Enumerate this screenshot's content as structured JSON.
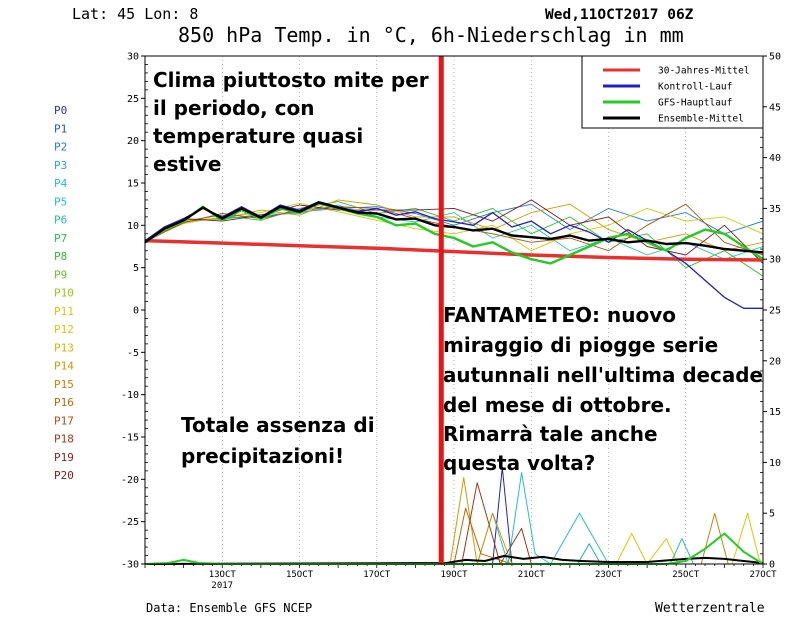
{
  "header": {
    "location": "Lat: 45 Lon: 8",
    "date": "Wed,11OCT2017 06Z",
    "title": "850 hPa Temp. in °C, 6h-Niederschlag in mm"
  },
  "footer": {
    "source": "Data: Ensemble GFS NCEP",
    "brand": "Wetterzentrale"
  },
  "annotations": {
    "clima": [
      "Clima piuttosto mite per",
      "il periodo, con",
      "temperature quasi",
      "estive"
    ],
    "precip": [
      "Totale assenza di",
      "precipitazioni!"
    ],
    "fantameteo": [
      "FANTAMETEO: nuovo",
      "miraggio di piogge serie",
      "autunnali nell'ultima decade",
      "del mese di ottobre.",
      "Rimarrà tale anche",
      "questa volta?"
    ]
  },
  "colors": {
    "climate": "#e8312f",
    "control": "#2020c8",
    "gfs": "#22cc22",
    "ensemble": "#000000",
    "marker": "#ee1111"
  },
  "chart_data": {
    "type": "line",
    "x_start_day": 11,
    "x_end_day": 27,
    "x_ticks": [
      {
        "day": 13,
        "label": "13OCT"
      },
      {
        "day": 15,
        "label": "15OCT"
      },
      {
        "day": 17,
        "label": "17OCT"
      },
      {
        "day": 19,
        "label": "19OCT"
      },
      {
        "day": 21,
        "label": "21OCT"
      },
      {
        "day": 23,
        "label": "23OCT"
      },
      {
        "day": 25,
        "label": "25OCT"
      },
      {
        "day": 27,
        "label": "27OCT"
      }
    ],
    "x_year_label": "2017",
    "y_left": {
      "min": -30,
      "max": 30,
      "ticks": [
        30,
        25,
        20,
        15,
        10,
        5,
        0,
        -5,
        -10,
        -15,
        -20,
        -25,
        -30
      ]
    },
    "y_right": {
      "min": 0,
      "max": 50,
      "ticks": [
        50,
        45,
        40,
        35,
        30,
        25,
        20,
        15,
        10,
        5,
        0
      ]
    },
    "marker_day": 18.67,
    "legend": [
      {
        "label": "30-Jahres-Mittel",
        "color": "#e8312f"
      },
      {
        "label": "Kontroll-Lauf",
        "color": "#2020c8"
      },
      {
        "label": "GFS-Hauptlauf",
        "color": "#22cc22"
      },
      {
        "label": "Ensemble-Mittel",
        "color": "#000000"
      }
    ],
    "members": [
      {
        "name": "P0",
        "color": "#3030b0"
      },
      {
        "name": "P1",
        "color": "#2255cc"
      },
      {
        "name": "P2",
        "color": "#1f80d0"
      },
      {
        "name": "P3",
        "color": "#22a8cc"
      },
      {
        "name": "P4",
        "color": "#22c0d0"
      },
      {
        "name": "P5",
        "color": "#22c8b0"
      },
      {
        "name": "P6",
        "color": "#22c890"
      },
      {
        "name": "P7",
        "color": "#22c060"
      },
      {
        "name": "P8",
        "color": "#30c030"
      },
      {
        "name": "P9",
        "color": "#60c820"
      },
      {
        "name": "P10",
        "color": "#90d010"
      },
      {
        "name": "P11",
        "color": "#c8d000"
      },
      {
        "name": "P12",
        "color": "#e0c800"
      },
      {
        "name": "P13",
        "color": "#e0b000"
      },
      {
        "name": "P14",
        "color": "#d89800"
      },
      {
        "name": "P15",
        "color": "#d08000"
      },
      {
        "name": "P16",
        "color": "#c06800"
      },
      {
        "name": "P17",
        "color": "#b05010"
      },
      {
        "name": "P18",
        "color": "#a03818"
      },
      {
        "name": "P19",
        "color": "#902020"
      },
      {
        "name": "P20",
        "color": "#801818"
      }
    ],
    "series": [
      {
        "name": "30-Jahres-Mittel",
        "x": [
          11,
          13,
          15,
          17,
          19,
          21,
          23,
          25,
          27
        ],
        "y": [
          8.2,
          7.9,
          7.6,
          7.3,
          6.9,
          6.5,
          6.2,
          6.0,
          5.9
        ]
      },
      {
        "name": "Kontroll-Lauf",
        "x": [
          11,
          11.5,
          12,
          12.5,
          13,
          13.5,
          14,
          14.5,
          15,
          15.5,
          16,
          16.5,
          17,
          17.5,
          18,
          18.5,
          19,
          19.5,
          20,
          20.5,
          21,
          21.5,
          22,
          22.5,
          23,
          23.5,
          24,
          24.5,
          25,
          25.5,
          26,
          26.5,
          27
        ],
        "y": [
          8.2,
          9.8,
          10.8,
          12.0,
          11.0,
          12.2,
          11.0,
          12.4,
          11.8,
          12.8,
          12.2,
          11.6,
          12.0,
          11.2,
          11.6,
          10.8,
          10.4,
          10.0,
          11.5,
          9.8,
          10.5,
          9.0,
          10.0,
          9.2,
          8.0,
          9.5,
          8.2,
          7.0,
          5.5,
          3.5,
          1.5,
          0.2,
          0.2
        ]
      },
      {
        "name": "GFS-Hauptlauf",
        "x": [
          11,
          11.5,
          12,
          12.5,
          13,
          13.5,
          14,
          14.5,
          15,
          15.5,
          16,
          16.5,
          17,
          17.5,
          18,
          18.5,
          19,
          19.5,
          20,
          20.5,
          21,
          21.5,
          22,
          22.5,
          23,
          23.5,
          24,
          24.5,
          25,
          25.5,
          26,
          26.5,
          27
        ],
        "y": [
          8.0,
          9.5,
          10.5,
          12.2,
          10.6,
          11.8,
          10.8,
          12.0,
          11.5,
          12.6,
          12.0,
          11.4,
          11.0,
          10.0,
          10.2,
          9.0,
          8.5,
          7.5,
          8.0,
          6.8,
          6.0,
          5.5,
          6.5,
          7.5,
          8.5,
          9.0,
          8.0,
          7.0,
          8.5,
          9.5,
          9.0,
          7.5,
          6.0
        ]
      },
      {
        "name": "Ensemble-Mittel",
        "x": [
          11,
          11.5,
          12,
          12.5,
          13,
          13.5,
          14,
          14.5,
          15,
          15.5,
          16,
          16.5,
          17,
          17.5,
          18,
          18.5,
          19,
          19.5,
          20,
          20.5,
          21,
          21.5,
          22,
          22.5,
          23,
          23.5,
          24,
          24.5,
          25,
          25.5,
          26,
          26.5,
          27
        ],
        "y": [
          8.0,
          9.6,
          10.6,
          12.1,
          10.8,
          12.0,
          10.9,
          12.2,
          11.6,
          12.7,
          12.1,
          11.5,
          11.4,
          10.7,
          10.8,
          10.0,
          9.8,
          9.4,
          9.6,
          8.8,
          8.6,
          8.4,
          8.8,
          8.2,
          8.4,
          8.0,
          8.2,
          7.8,
          7.9,
          7.6,
          7.2,
          7.0,
          6.8
        ]
      }
    ],
    "ensemble_spread": [
      {
        "x": [
          11,
          12,
          13,
          14,
          15,
          16,
          17,
          18,
          19,
          20,
          21,
          22,
          23,
          24,
          25,
          26,
          27
        ],
        "y": [
          8.0,
          10.4,
          10.9,
          11.0,
          11.6,
          12.0,
          12.2,
          11.4,
          10.0,
          11.5,
          12.5,
          9.5,
          12.0,
          10.5,
          11.5,
          9.0,
          10.5
        ]
      },
      {
        "x": [
          11,
          12,
          13,
          14,
          15,
          16,
          17,
          18,
          19,
          20,
          21,
          22,
          23,
          24,
          25,
          26,
          27
        ],
        "y": [
          8.1,
          10.7,
          10.7,
          11.3,
          11.4,
          12.4,
          11.0,
          10.4,
          11.5,
          8.5,
          10.0,
          7.0,
          8.5,
          6.5,
          8.0,
          6.0,
          7.5
        ]
      },
      {
        "x": [
          11,
          12,
          13,
          14,
          15,
          16,
          17,
          18,
          19,
          20,
          21,
          22,
          23,
          24,
          25,
          26,
          27
        ],
        "y": [
          8.0,
          10.5,
          11.2,
          10.6,
          12.0,
          12.8,
          11.4,
          12.0,
          10.5,
          12.0,
          9.0,
          11.0,
          8.0,
          9.0,
          5.0,
          7.0,
          4.0
        ]
      },
      {
        "x": [
          11,
          12,
          13,
          14,
          15,
          16,
          17,
          18,
          19,
          20,
          21,
          22,
          23,
          24,
          25,
          26,
          27
        ],
        "y": [
          8.2,
          10.2,
          11.0,
          11.5,
          12.6,
          11.6,
          10.6,
          9.6,
          9.0,
          10.0,
          7.0,
          9.0,
          10.0,
          12.0,
          10.5,
          11.0,
          9.0
        ]
      },
      {
        "x": [
          11,
          12,
          13,
          14,
          15,
          16,
          17,
          18,
          19,
          20,
          21,
          22,
          23,
          24,
          25,
          26,
          27
        ],
        "y": [
          8.0,
          10.6,
          10.8,
          11.8,
          11.2,
          13.0,
          12.4,
          11.0,
          11.0,
          9.5,
          11.5,
          12.5,
          9.5,
          8.0,
          9.0,
          7.0,
          8.0
        ]
      },
      {
        "x": [
          11,
          12,
          13,
          14,
          15,
          16,
          17,
          18,
          19,
          20,
          21,
          22,
          23,
          24,
          25,
          26,
          27
        ],
        "y": [
          8.1,
          10.3,
          11.4,
          10.8,
          11.8,
          12.2,
          12.0,
          10.8,
          9.8,
          9.0,
          8.0,
          8.5,
          7.0,
          10.0,
          12.5,
          8.0,
          6.5
        ]
      },
      {
        "x": [
          11,
          12,
          13,
          14,
          15,
          16,
          17,
          18,
          19,
          20,
          21,
          22,
          23,
          24,
          25,
          26,
          27
        ],
        "y": [
          8.0,
          10.8,
          10.5,
          11.2,
          12.4,
          11.8,
          11.8,
          11.8,
          12.0,
          10.5,
          13.0,
          10.0,
          11.0,
          7.5,
          6.5,
          10.0,
          5.5
        ]
      }
    ],
    "precip_series": [
      {
        "name": "Kontroll-Lauf",
        "x": [
          20,
          20.25,
          20.5
        ],
        "y": [
          0,
          9.5,
          0
        ]
      },
      {
        "name": "P4",
        "x": [
          19.6,
          20.0,
          20.4,
          20.75,
          21.1,
          21.5,
          22.0
        ],
        "y": [
          0,
          5,
          0,
          9,
          1,
          0,
          0
        ]
      },
      {
        "name": "P5",
        "x": [
          21.5,
          22.25,
          23.0
        ],
        "y": [
          0,
          5,
          0
        ]
      },
      {
        "name": "P14",
        "x": [
          18.9,
          19.25,
          19.6,
          20.0,
          20.5
        ],
        "y": [
          0,
          8.5,
          0,
          5,
          0
        ]
      },
      {
        "name": "P16",
        "x": [
          19.0,
          19.3,
          19.7,
          20.5
        ],
        "y": [
          0,
          5.5,
          1.0,
          0
        ]
      },
      {
        "name": "P18",
        "x": [
          19.2,
          19.6,
          20.2,
          20.75,
          21.0
        ],
        "y": [
          0,
          8,
          0,
          3.5,
          0
        ]
      },
      {
        "name": "P3",
        "x": [
          22.2,
          22.5,
          22.8
        ],
        "y": [
          0,
          2,
          0
        ]
      },
      {
        "name": "P12",
        "x": [
          23.2,
          23.6,
          24.0,
          24.5,
          24.8
        ],
        "y": [
          0,
          3,
          0,
          2.5,
          0
        ]
      },
      {
        "name": "P6",
        "x": [
          24.6,
          24.9,
          25.2
        ],
        "y": [
          0,
          2.5,
          0
        ]
      },
      {
        "name": "P15",
        "x": [
          25.4,
          25.75,
          26.1
        ],
        "y": [
          0,
          5,
          0
        ]
      },
      {
        "name": "P11",
        "x": [
          26.2,
          26.6,
          26.9,
          27.0
        ],
        "y": [
          0,
          5,
          0.5,
          0
        ]
      },
      {
        "name": "Ensemble-Mittel",
        "x": [
          11,
          18.8,
          19.3,
          19.8,
          20.3,
          20.8,
          21.3,
          21.8,
          22.3,
          23.0,
          24.0,
          25.0,
          25.5,
          26.0,
          26.5,
          27.0
        ],
        "y": [
          0,
          0.1,
          0.4,
          0.3,
          0.8,
          0.5,
          0.7,
          0.4,
          0.3,
          0.2,
          0.2,
          0.5,
          0.6,
          0.5,
          0.3,
          0.1
        ]
      },
      {
        "name": "GFS-Hauptlauf",
        "x": [
          11,
          11.6,
          12.0,
          12.4,
          13,
          18.8,
          24.5,
          25.0,
          25.5,
          26.0,
          26.5,
          27.0
        ],
        "y": [
          0,
          0.1,
          0.4,
          0.1,
          0,
          0,
          0,
          0.3,
          1.5,
          3.0,
          1.2,
          0
        ]
      }
    ]
  }
}
